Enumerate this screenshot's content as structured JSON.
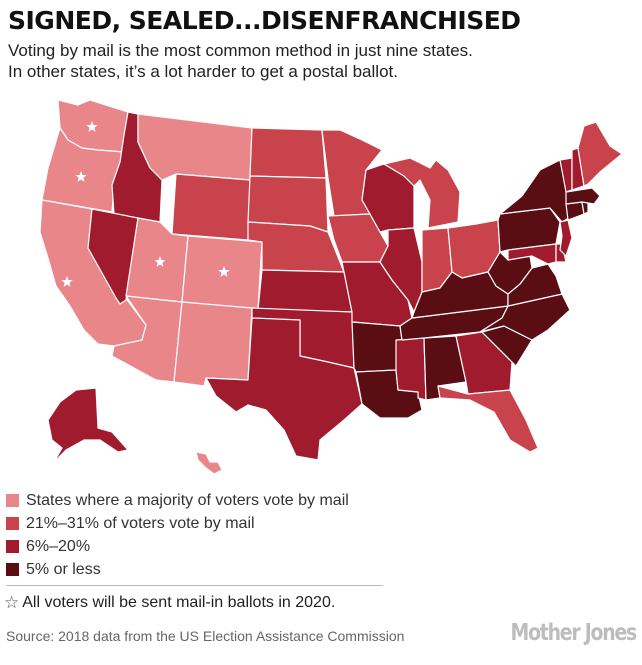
{
  "header": {
    "title": "SIGNED, SEALED...DISENFRANCHISED",
    "subtitle_line1": "Voting by mail is the most common method in just nine states.",
    "subtitle_line2": "In other states, it’s a lot harder to get a postal ballot."
  },
  "colors": {
    "majority": "#e8868a",
    "pct21_31": "#c9434c",
    "pct6_20": "#a01b2d",
    "pct5_less": "#5a0d12",
    "border": "#ffffff",
    "star": "#ffffff"
  },
  "legend": {
    "items": [
      {
        "key": "majority",
        "label": "States where a majority of voters vote by mail"
      },
      {
        "key": "pct21_31",
        "label": "21%–31% of voters vote by mail"
      },
      {
        "key": "pct6_20",
        "label": "6%–20%"
      },
      {
        "key": "pct5_less",
        "label": "5% or less"
      }
    ],
    "star_note": "All voters will be sent mail-in ballots in 2020."
  },
  "source": "Source: 2018 data from the US Election Assistance Commission",
  "logo": "Mother Jones",
  "states": {
    "majority": [
      "WA",
      "OR",
      "CA",
      "MT",
      "UT",
      "CO",
      "AZ",
      "NM",
      "HI"
    ],
    "pct21_31": [
      "ND",
      "WY",
      "SD",
      "NE",
      "MN",
      "IA",
      "MI",
      "IN",
      "OH",
      "ME",
      "FL"
    ],
    "pct6_20": [
      "ID",
      "NV",
      "KS",
      "OK",
      "TX",
      "MO",
      "WI",
      "IL",
      "MS",
      "GA",
      "AK",
      "NJ",
      "VT",
      "NH",
      "MD",
      "DE"
    ],
    "pct5_less": [
      "AR",
      "LA",
      "AL",
      "KY",
      "TN",
      "WV",
      "VA",
      "NC",
      "SC",
      "PA",
      "NY",
      "MA",
      "CT",
      "RI"
    ]
  },
  "star_states": [
    "WA",
    "OR",
    "CA",
    "UT",
    "CO"
  ]
}
